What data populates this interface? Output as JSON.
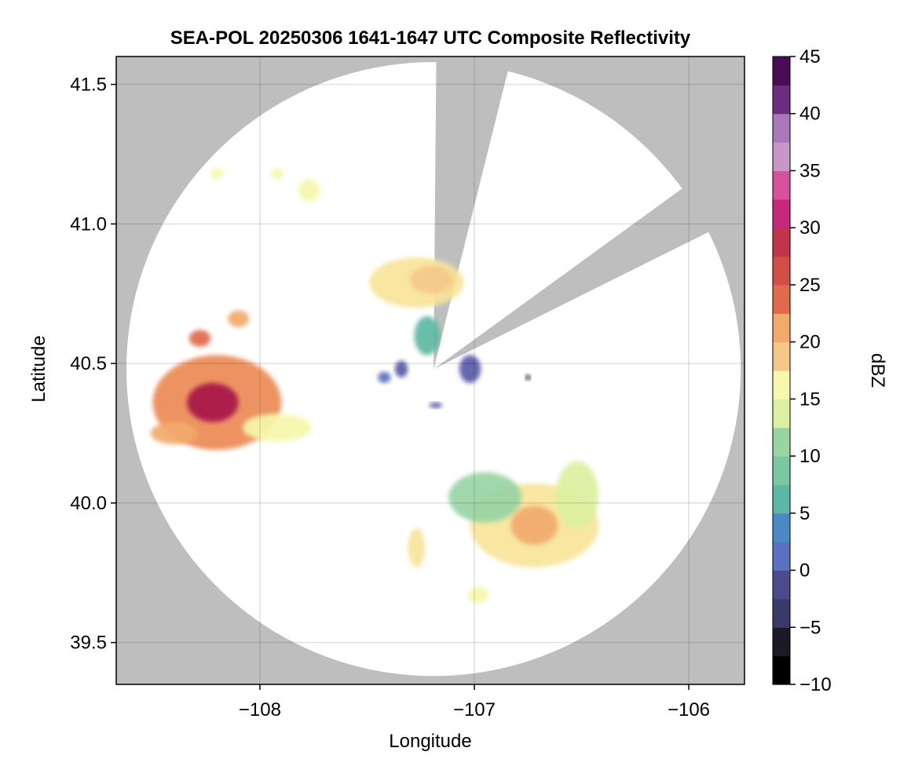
{
  "chart_data": {
    "type": "heatmap",
    "title": "SEA-POL 20250306 1641-1647 UTC Composite Reflectivity",
    "xlabel": "Longitude",
    "ylabel": "Latitude",
    "xlim": [
      -108.67,
      -105.74
    ],
    "ylim": [
      39.35,
      41.6
    ],
    "xticks": [
      -108,
      -107,
      -106
    ],
    "xtick_labels": [
      "−108",
      "−107",
      "−106"
    ],
    "yticks": [
      39.5,
      40.0,
      40.5,
      41.0,
      41.5
    ],
    "ytick_labels": [
      "39.5",
      "40.0",
      "40.5",
      "41.0",
      "41.5"
    ],
    "grid": true,
    "background_color": "#bebebe",
    "coverage_color": "#ffffff",
    "radar": {
      "center_lon": -107.19,
      "center_lat": 40.48,
      "range_deg_lat": 1.1,
      "blocked_sectors": [
        {
          "from_lon": -106.86,
          "from_lat": 41.53,
          "to_lon": -107.17,
          "to_lat": 41.56
        },
        {
          "from_lon": -106.06,
          "from_lat": 41.11,
          "to_lon": -105.93,
          "to_lat": 40.97
        }
      ]
    },
    "colorbar": {
      "label": "dBZ",
      "min": -10,
      "max": 45,
      "step": 2.5,
      "ticks": [
        -10,
        -5,
        0,
        5,
        10,
        15,
        20,
        25,
        30,
        35,
        40,
        45
      ],
      "tick_labels": [
        "−10",
        "−5",
        "0",
        "5",
        "10",
        "15",
        "20",
        "25",
        "30",
        "35",
        "40",
        "45"
      ],
      "colormap": "Spectral_r with pink/purple extension",
      "colors": [
        "#000000",
        "#1c1a24",
        "#2e2a44",
        "#3a3a6a",
        "#4a4a8e",
        "#5a5aa8",
        "#5a70c0",
        "#4a8ac4",
        "#4ca6b4",
        "#5cb8a4",
        "#78c8a2",
        "#98d4a4",
        "#bce4a2",
        "#dcf0a0",
        "#f6f8ac",
        "#f8e49a",
        "#f6c888",
        "#f2aa6c",
        "#ec8a54",
        "#e06a4a",
        "#d44e48",
        "#c43448",
        "#a81848",
        "#c8287a",
        "#d85098",
        "#e080b8",
        "#c896c8",
        "#a878b8",
        "#8c54a0",
        "#6c2c80",
        "#4a0c56"
      ]
    },
    "echoes": [
      {
        "name": "west-cell",
        "lon": -108.2,
        "lat": 40.36,
        "rlon": 0.3,
        "rlat": 0.17,
        "dbz": 23
      },
      {
        "name": "west-cell-core",
        "lon": -108.22,
        "lat": 40.36,
        "rlon": 0.12,
        "rlat": 0.07,
        "dbz": 30
      },
      {
        "name": "west-cell-tail",
        "lon": -107.92,
        "lat": 40.27,
        "rlon": 0.16,
        "rlat": 0.05,
        "dbz": 15
      },
      {
        "name": "west-cell-fringe",
        "lon": -108.4,
        "lat": 40.25,
        "rlon": 0.11,
        "rlat": 0.04,
        "dbz": 22
      },
      {
        "name": "west-cell-nw",
        "lon": -108.28,
        "lat": 40.59,
        "rlon": 0.05,
        "rlat": 0.03,
        "dbz": 25
      },
      {
        "name": "west-cell-north",
        "lon": -108.1,
        "lat": 40.66,
        "rlon": 0.05,
        "rlat": 0.03,
        "dbz": 21
      },
      {
        "name": "northern-scatter-1",
        "lon": -108.2,
        "lat": 41.18,
        "rlon": 0.03,
        "rlat": 0.02,
        "dbz": 16
      },
      {
        "name": "northern-scatter-2",
        "lon": -107.92,
        "lat": 41.18,
        "rlon": 0.03,
        "rlat": 0.02,
        "dbz": 15
      },
      {
        "name": "northern-scatter-3",
        "lon": -107.77,
        "lat": 41.12,
        "rlon": 0.05,
        "rlat": 0.04,
        "dbz": 16
      },
      {
        "name": "central-north-cell",
        "lon": -107.27,
        "lat": 40.79,
        "rlon": 0.22,
        "rlat": 0.09,
        "dbz": 17
      },
      {
        "name": "central-north-core",
        "lon": -107.2,
        "lat": 40.8,
        "rlon": 0.1,
        "rlat": 0.05,
        "dbz": 20
      },
      {
        "name": "near-radar-echo",
        "lon": -107.22,
        "lat": 40.6,
        "rlon": 0.06,
        "rlat": 0.07,
        "dbz": 6
      },
      {
        "name": "near-radar-low-1",
        "lon": -107.34,
        "lat": 40.48,
        "rlon": 0.03,
        "rlat": 0.03,
        "dbz": 0
      },
      {
        "name": "near-radar-low-2",
        "lon": -107.02,
        "lat": 40.48,
        "rlon": 0.05,
        "rlat": 0.05,
        "dbz": -1
      },
      {
        "name": "near-radar-low-3",
        "lon": -107.42,
        "lat": 40.45,
        "rlon": 0.03,
        "rlat": 0.02,
        "dbz": 1
      },
      {
        "name": "near-radar-low-4",
        "lon": -107.18,
        "lat": 40.35,
        "rlon": 0.03,
        "rlat": 0.01,
        "dbz": 0
      },
      {
        "name": "isolated-point",
        "lon": -106.75,
        "lat": 40.45,
        "rlon": 0.012,
        "rlat": 0.01,
        "dbz": -9
      },
      {
        "name": "southeast-cell",
        "lon": -106.72,
        "lat": 39.92,
        "rlon": 0.3,
        "rlat": 0.15,
        "dbz": 18
      },
      {
        "name": "southeast-cell-west",
        "lon": -106.95,
        "lat": 40.02,
        "rlon": 0.17,
        "rlat": 0.09,
        "dbz": 10
      },
      {
        "name": "southeast-cell-east",
        "lon": -106.52,
        "lat": 40.03,
        "rlon": 0.1,
        "rlat": 0.12,
        "dbz": 13
      },
      {
        "name": "southeast-cell-core",
        "lon": -106.72,
        "lat": 39.92,
        "rlon": 0.11,
        "rlat": 0.07,
        "dbz": 21
      },
      {
        "name": "southeast-south",
        "lon": -106.98,
        "lat": 39.67,
        "rlon": 0.05,
        "rlat": 0.03,
        "dbz": 16
      },
      {
        "name": "southeast-west-blob",
        "lon": -107.27,
        "lat": 39.84,
        "rlon": 0.04,
        "rlat": 0.07,
        "dbz": 18
      }
    ]
  }
}
